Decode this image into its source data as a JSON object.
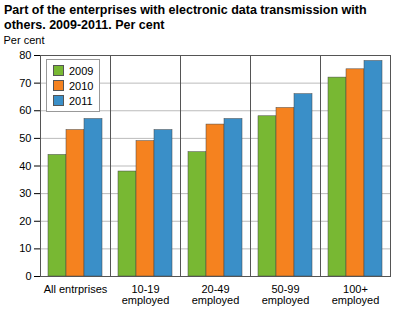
{
  "chart_data": {
    "type": "bar",
    "title": "Part of the enterprises with electronic data transmission with others. 2009-2011. Per cent",
    "y_label": "Per cent",
    "categories": [
      "All entrprises",
      "10-19\nemployed",
      "20-49\nemployed",
      "50-99\nemployed",
      "100+\nemployed"
    ],
    "series": [
      {
        "name": "2009",
        "color": "#78b833",
        "values": [
          44,
          38,
          45,
          58,
          72
        ]
      },
      {
        "name": "2010",
        "color": "#f5821f",
        "values": [
          53,
          49,
          55,
          61,
          75
        ]
      },
      {
        "name": "2011",
        "color": "#3a8fc8",
        "values": [
          57,
          53,
          57,
          66,
          78
        ]
      }
    ],
    "ylim": [
      0,
      80
    ],
    "yticks": [
      0,
      10,
      20,
      30,
      40,
      50,
      60,
      70,
      80
    ],
    "grid": true,
    "legend": "top-left"
  }
}
